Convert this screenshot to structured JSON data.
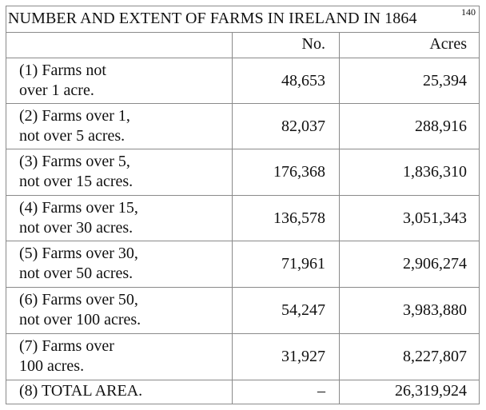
{
  "table": {
    "title": "NUMBER AND EXTENT OF FARMS IN IRELAND IN 1864",
    "note": "140",
    "headers": {
      "category": "",
      "number": "No.",
      "acres": "Acres"
    },
    "rows": [
      {
        "line1": "(1) Farms not",
        "line2": "over 1 acre.",
        "number": "48,653",
        "acres": "25,394"
      },
      {
        "line1": "(2) Farms over 1,",
        "line2": "not over 5 acres.",
        "number": "82,037",
        "acres": "288,916"
      },
      {
        "line1": "(3) Farms over 5,",
        "line2": "not over 15 acres.",
        "number": "176,368",
        "acres": "1,836,310"
      },
      {
        "line1": "(4) Farms over 15,",
        "line2": "not over 30 acres.",
        "number": "136,578",
        "acres": "3,051,343"
      },
      {
        "line1": "(5) Farms over 30,",
        "line2": "not over 50 acres.",
        "number": "71,961",
        "acres": "2,906,274"
      },
      {
        "line1": "(6) Farms over 50,",
        "line2": "not over 100 acres.",
        "number": "54,247",
        "acres": "3,983,880"
      },
      {
        "line1": "(7) Farms over",
        "line2": "100 acres.",
        "number": "31,927",
        "acres": "8,227,807"
      },
      {
        "line1": "(8) TOTAL AREA.",
        "line2": "",
        "number": "–",
        "acres": "26,319,924"
      }
    ]
  }
}
